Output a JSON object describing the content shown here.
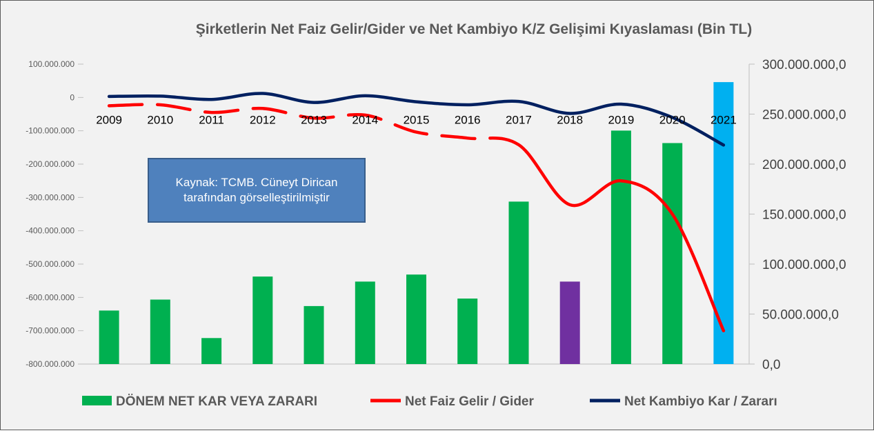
{
  "chart_data": {
    "type": "bar",
    "title": "Şirketlerin Net Faiz Gelir/Gider ve Net Kambiyo K/Z Gelişimi Kıyaslaması (Bin TL)",
    "categories": [
      "2009",
      "2010",
      "2011",
      "2012",
      "2013",
      "2014",
      "2015",
      "2016",
      "2017",
      "2018",
      "2019",
      "2020",
      "2021"
    ],
    "left_axis": {
      "ticks": [
        100000000,
        0,
        -100000000,
        -200000000,
        -300000000,
        -400000000,
        -500000000,
        -600000000,
        -700000000,
        -800000000
      ],
      "tick_labels": [
        "100.000.000",
        "0",
        "-100.000.000",
        "-200.000.000",
        "-300.000.000",
        "-400.000.000",
        "-500.000.000",
        "-600.000.000",
        "-700.000.000",
        "-800.000.000"
      ],
      "ylim": [
        -800000000,
        100000000
      ]
    },
    "right_axis": {
      "ticks": [
        300000000,
        250000000,
        200000000,
        150000000,
        100000000,
        50000000,
        0
      ],
      "tick_labels": [
        "300.000.000,0",
        "250.000.000,0",
        "200.000.000,0",
        "150.000.000,0",
        "100.000.000,0",
        "50.000.000,0",
        "0,0"
      ],
      "ylim": [
        0,
        300000000
      ]
    },
    "series": [
      {
        "name": "DÖNEM NET KAR VEYA ZARARI",
        "type": "bar",
        "axis": "right",
        "color": "#00b050",
        "highlight_colors": {
          "2018": "#7030a0",
          "2021": "#00b0f0"
        },
        "values": [
          53500000,
          64500000,
          26000000,
          87500000,
          58000000,
          82500000,
          89500000,
          65500000,
          162500000,
          82500000,
          233500000,
          221000000,
          282000000
        ]
      },
      {
        "name": "Net Faiz Gelir / Gider",
        "type": "line",
        "axis": "left",
        "color": "#ff0000",
        "dashed_segments_before": 2015,
        "values": [
          -25000000,
          -22000000,
          -45000000,
          -33000000,
          -62000000,
          -53000000,
          -104000000,
          -122000000,
          -142000000,
          -322000000,
          -250000000,
          -350000000,
          -700000000
        ]
      },
      {
        "name": "Net Kambiyo Kar / Zararı",
        "type": "line",
        "axis": "left",
        "color": "#002060",
        "values": [
          3000000,
          4000000,
          -6000000,
          12000000,
          -15000000,
          5000000,
          -13000000,
          -22000000,
          -12000000,
          -48000000,
          -20000000,
          -60000000,
          -143000000
        ]
      }
    ],
    "legend_position": "bottom",
    "grid": false
  },
  "annotation": {
    "line1": "Kaynak: TCMB. Cüneyt Dirican",
    "line2": "tarafından görselleştirilmiştir"
  }
}
